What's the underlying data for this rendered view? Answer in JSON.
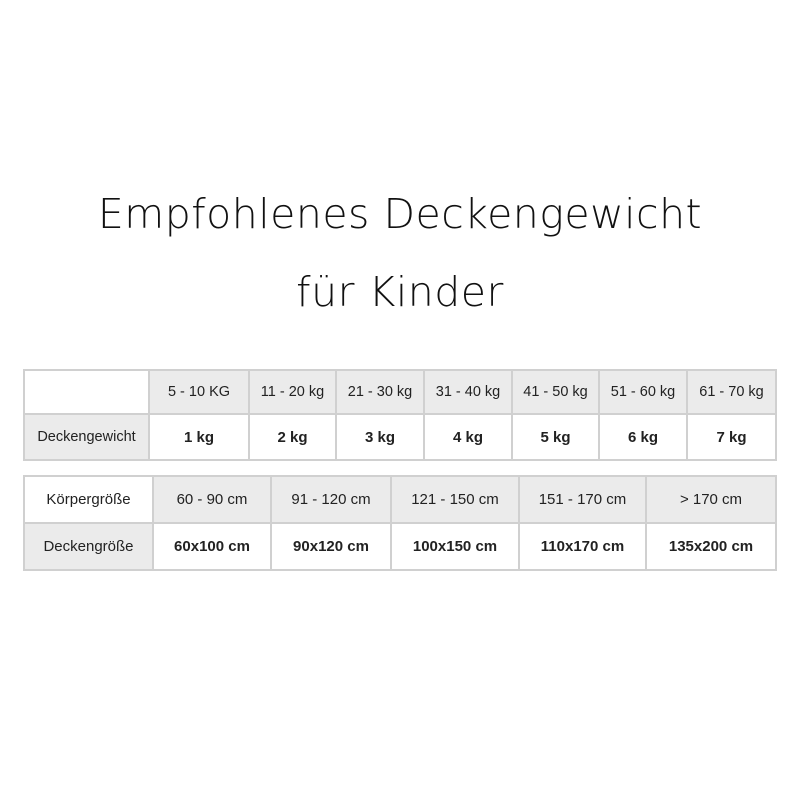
{
  "title": {
    "line1": "Empfohlenes Deckengewicht",
    "line2": "für Kinder"
  },
  "weight_table": {
    "row_label": "Deckengewicht",
    "columns": [
      "5 - 10 KG",
      "11 - 20 kg",
      "21 - 30 kg",
      "31 - 40 kg",
      "41 - 50 kg",
      "51 - 60 kg",
      "61 - 70 kg"
    ],
    "values": [
      "1 kg",
      "2 kg",
      "3 kg",
      "4 kg",
      "5 kg",
      "6 kg",
      "7 kg"
    ]
  },
  "size_table": {
    "header_label": "Körpergröße",
    "row_label": "Deckengröße",
    "columns": [
      "60 - 90 cm",
      "91 - 120 cm",
      "121 - 150 cm",
      "151 - 170 cm",
      "> 170 cm"
    ],
    "values": [
      "60x100 cm",
      "90x120 cm",
      "100x150 cm",
      "110x170 cm",
      "135x200 cm"
    ]
  },
  "colors": {
    "header_bg": "#ebebeb",
    "border": "#d0d0d0"
  }
}
